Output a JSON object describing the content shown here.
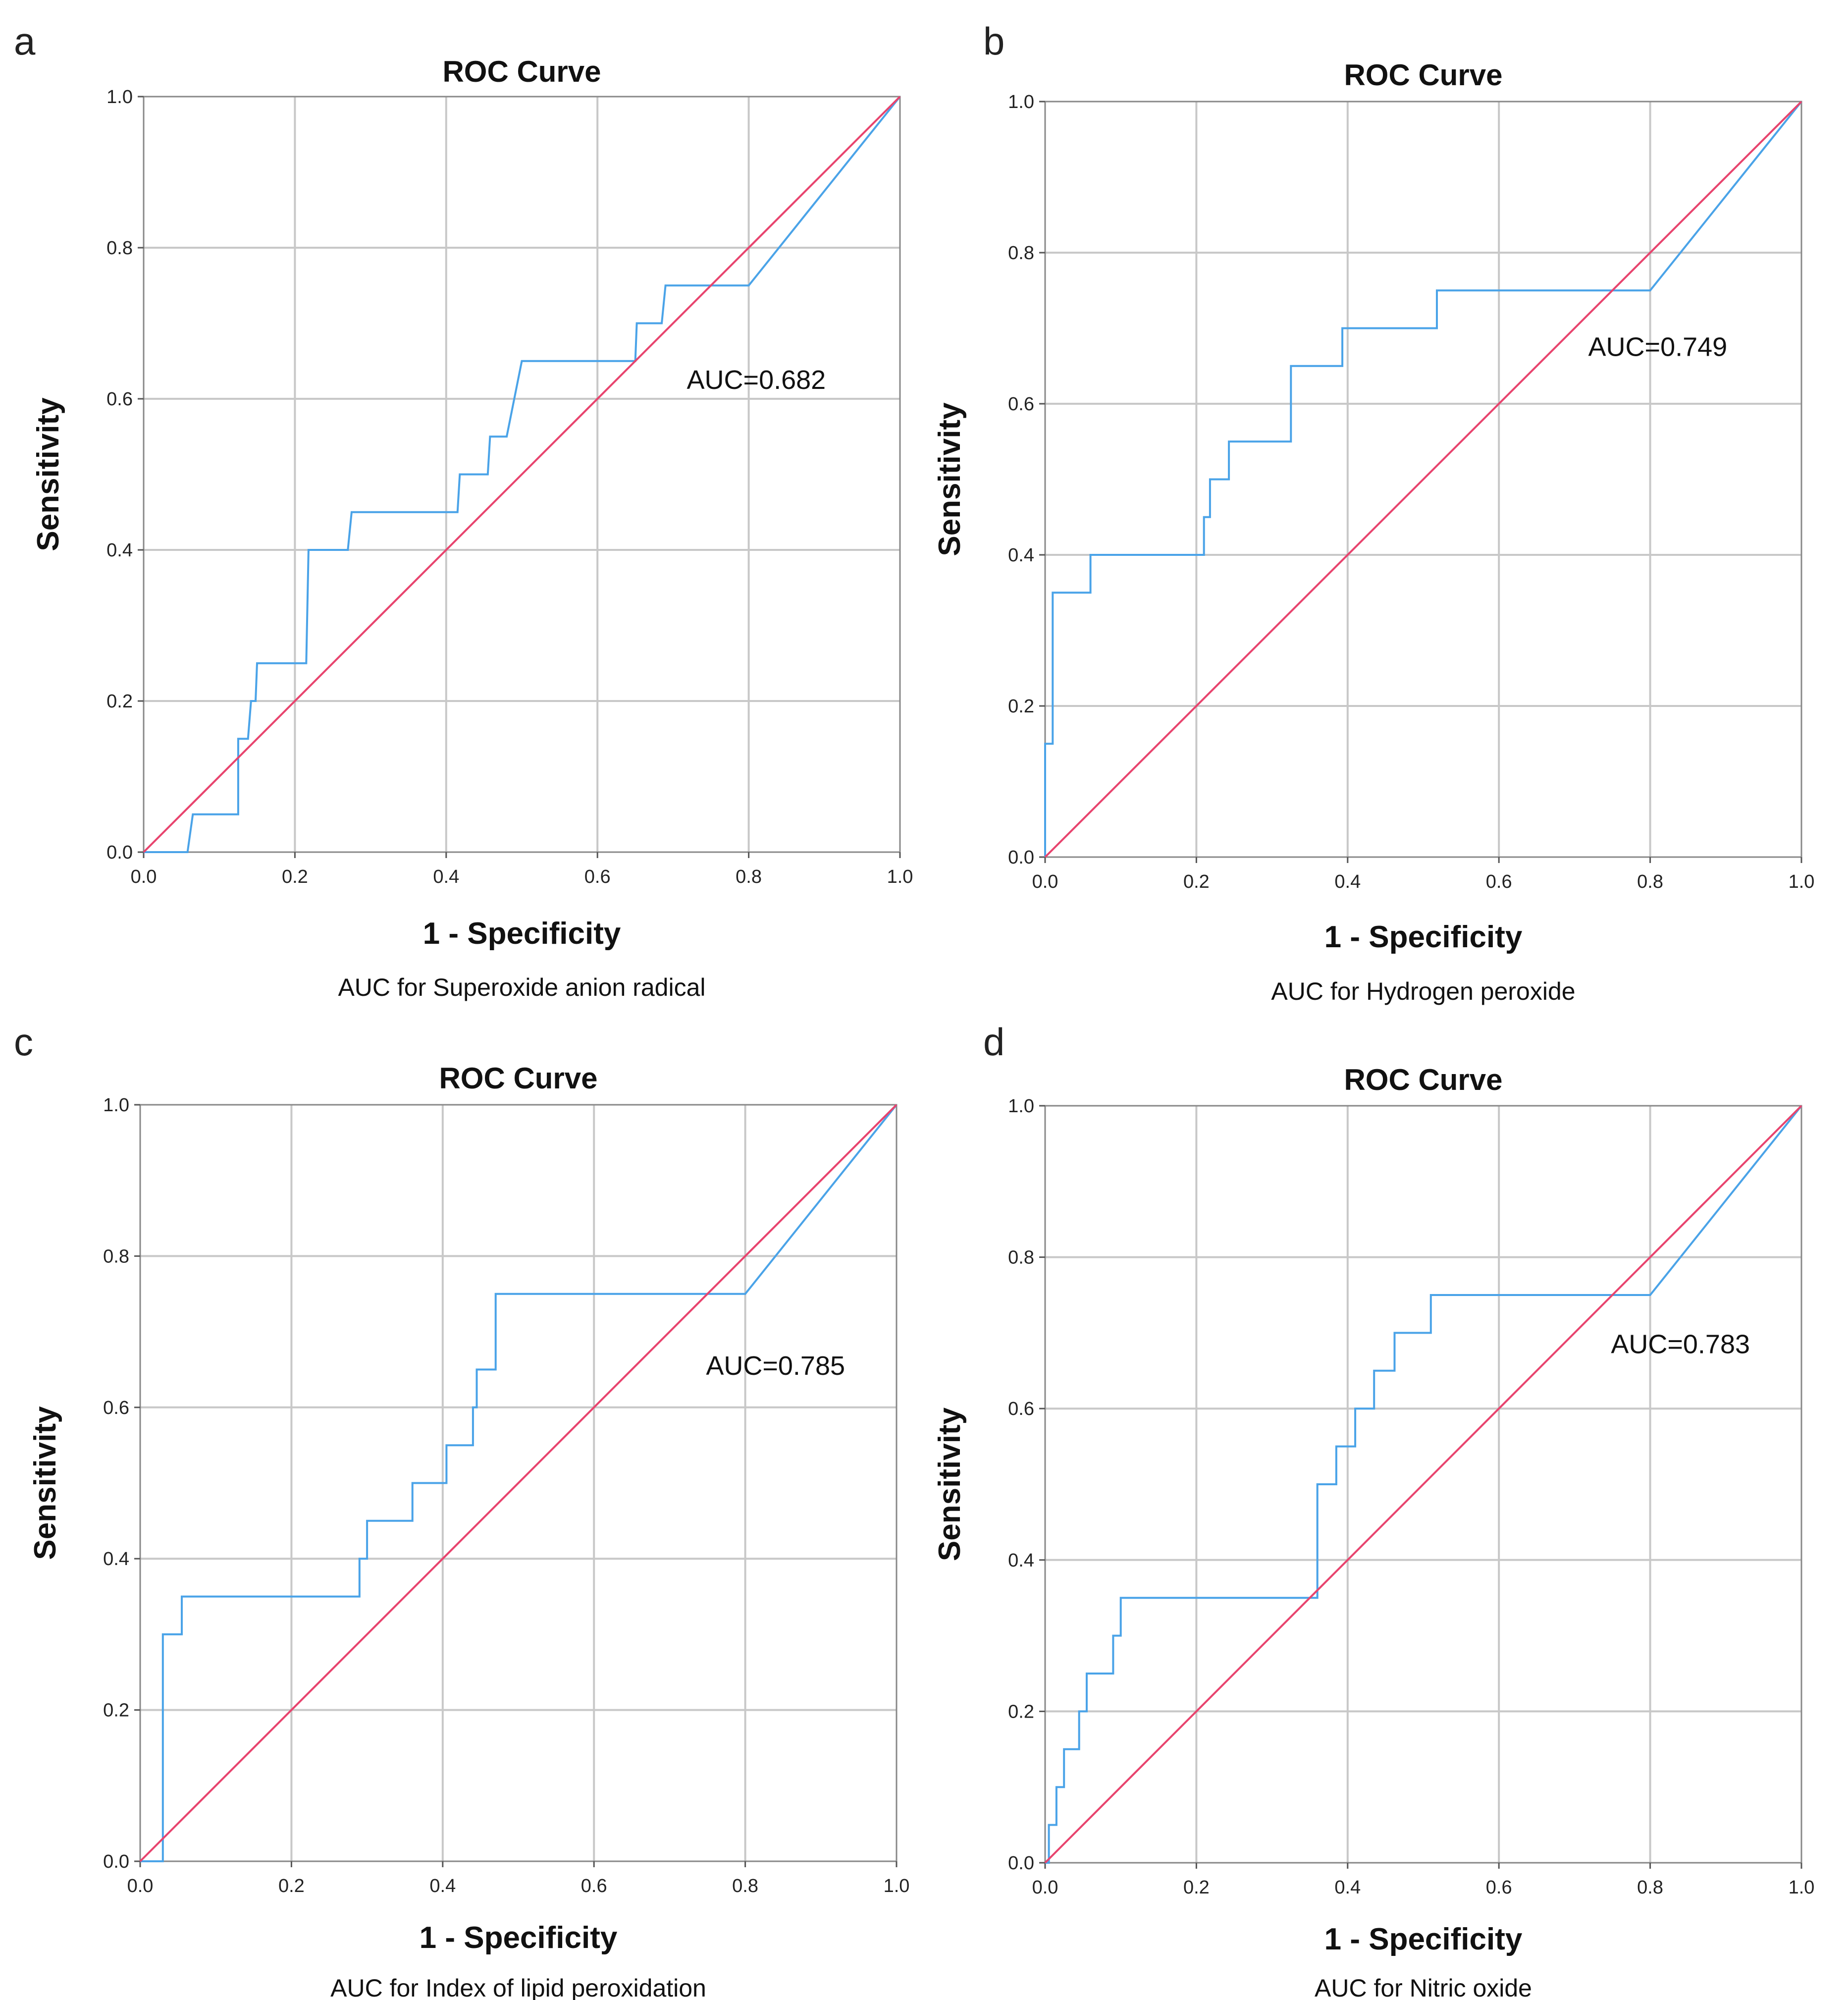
{
  "colors": {
    "roc_curve": "#4aa3e8",
    "reference_line": "#e8446e",
    "grid": "#c8c8c8",
    "frame": "#888888"
  },
  "chart_data": [
    {
      "panel": "a",
      "type": "line",
      "title": "ROC Curve",
      "xlabel": "1 - Specificity",
      "ylabel": "Sensitivity",
      "xlim": [
        0,
        1
      ],
      "ylim": [
        0,
        1
      ],
      "xticks": [
        "0.0",
        "0.2",
        "0.4",
        "0.6",
        "0.8",
        "1.0"
      ],
      "yticks": [
        "0.0",
        "0.2",
        "0.4",
        "0.6",
        "0.8",
        "1.0"
      ],
      "grid": true,
      "annotation": "AUC=0.682",
      "annotation_at": [
        0.81,
        0.625
      ],
      "caption": "AUC for Superoxide anion radical",
      "series": [
        {
          "name": "ROC curve",
          "x": [
            0,
            0.058,
            0.065,
            0.125,
            0.125,
            0.138,
            0.142,
            0.148,
            0.15,
            0.215,
            0.218,
            0.27,
            0.275,
            0.415,
            0.418,
            0.455,
            0.458,
            0.48,
            0.5,
            0.65,
            0.652,
            0.685,
            0.69,
            0.8,
            1.0
          ],
          "y": [
            0,
            0,
            0.05,
            0.05,
            0.15,
            0.15,
            0.2,
            0.2,
            0.25,
            0.25,
            0.4,
            0.4,
            0.45,
            0.45,
            0.5,
            0.5,
            0.55,
            0.55,
            0.65,
            0.65,
            0.7,
            0.7,
            0.75,
            0.75,
            1.0
          ]
        },
        {
          "name": "Reference line",
          "x": [
            0,
            1
          ],
          "y": [
            0,
            1
          ]
        }
      ]
    },
    {
      "panel": "b",
      "type": "line",
      "title": "ROC Curve",
      "xlabel": "1 - Specificity",
      "ylabel": "Sensitivity",
      "xlim": [
        0,
        1
      ],
      "ylim": [
        0,
        1
      ],
      "xticks": [
        "0.0",
        "0.2",
        "0.4",
        "0.6",
        "0.8",
        "1.0"
      ],
      "yticks": [
        "0.0",
        "0.2",
        "0.4",
        "0.6",
        "0.8",
        "1.0"
      ],
      "grid": true,
      "annotation": "AUC=0.749",
      "annotation_at": [
        0.81,
        0.675
      ],
      "caption": "AUC for Hydrogen peroxide",
      "series": [
        {
          "name": "ROC curve",
          "x": [
            0,
            0,
            0.01,
            0.01,
            0.06,
            0.06,
            0.21,
            0.21,
            0.218,
            0.218,
            0.243,
            0.243,
            0.325,
            0.325,
            0.393,
            0.393,
            0.518,
            0.518,
            0.8,
            1.0
          ],
          "y": [
            0,
            0.15,
            0.15,
            0.35,
            0.35,
            0.4,
            0.4,
            0.45,
            0.45,
            0.5,
            0.5,
            0.55,
            0.55,
            0.65,
            0.65,
            0.7,
            0.7,
            0.75,
            0.75,
            1.0
          ]
        },
        {
          "name": "Reference line",
          "x": [
            0,
            1
          ],
          "y": [
            0,
            1
          ]
        }
      ]
    },
    {
      "panel": "c",
      "type": "line",
      "title": "ROC Curve",
      "xlabel": "1 - Specificity",
      "ylabel": "Sensitivity",
      "xlim": [
        0,
        1
      ],
      "ylim": [
        0,
        1
      ],
      "xticks": [
        "0.0",
        "0.2",
        "0.4",
        "0.6",
        "0.8",
        "1.0"
      ],
      "yticks": [
        "0.0",
        "0.2",
        "0.4",
        "0.6",
        "0.8",
        "1.0"
      ],
      "grid": true,
      "annotation": "AUC=0.785",
      "annotation_at": [
        0.84,
        0.655
      ],
      "caption": "AUC for Index of lipid peroxidation",
      "series": [
        {
          "name": "ROC curve",
          "x": [
            0,
            0.03,
            0.03,
            0.055,
            0.055,
            0.29,
            0.29,
            0.3,
            0.3,
            0.36,
            0.36,
            0.405,
            0.405,
            0.44,
            0.44,
            0.445,
            0.445,
            0.47,
            0.47,
            0.8,
            1.0
          ],
          "y": [
            0,
            0,
            0.3,
            0.3,
            0.35,
            0.35,
            0.4,
            0.4,
            0.45,
            0.45,
            0.5,
            0.5,
            0.55,
            0.55,
            0.6,
            0.6,
            0.65,
            0.65,
            0.75,
            0.75,
            1.0
          ]
        },
        {
          "name": "Reference line",
          "x": [
            0,
            1
          ],
          "y": [
            0,
            1
          ]
        }
      ]
    },
    {
      "panel": "d",
      "type": "line",
      "title": "ROC Curve",
      "xlabel": "1 - Specificity",
      "ylabel": "Sensitivity",
      "xlim": [
        0,
        1
      ],
      "ylim": [
        0,
        1
      ],
      "xticks": [
        "0.0",
        "0.2",
        "0.4",
        "0.6",
        "0.8",
        "1.0"
      ],
      "yticks": [
        "0.0",
        "0.2",
        "0.4",
        "0.6",
        "0.8",
        "1.0"
      ],
      "grid": true,
      "annotation": "AUC=0.783",
      "annotation_at": [
        0.84,
        0.685
      ],
      "caption": "AUC for Nitric oxide",
      "series": [
        {
          "name": "ROC curve",
          "x": [
            0,
            0.005,
            0.005,
            0.015,
            0.015,
            0.025,
            0.025,
            0.045,
            0.045,
            0.055,
            0.055,
            0.09,
            0.09,
            0.1,
            0.1,
            0.36,
            0.36,
            0.385,
            0.385,
            0.41,
            0.41,
            0.435,
            0.435,
            0.462,
            0.462,
            0.51,
            0.51,
            0.59,
            0.59,
            0.8,
            1.0
          ],
          "y": [
            0,
            0,
            0.05,
            0.05,
            0.1,
            0.1,
            0.15,
            0.15,
            0.2,
            0.2,
            0.25,
            0.25,
            0.3,
            0.3,
            0.35,
            0.35,
            0.5,
            0.5,
            0.55,
            0.55,
            0.6,
            0.6,
            0.65,
            0.65,
            0.7,
            0.7,
            0.75,
            0.75,
            0.75,
            0.75,
            1.0
          ]
        },
        {
          "name": "Reference line",
          "x": [
            0,
            1
          ],
          "y": [
            0,
            1
          ]
        }
      ]
    }
  ]
}
